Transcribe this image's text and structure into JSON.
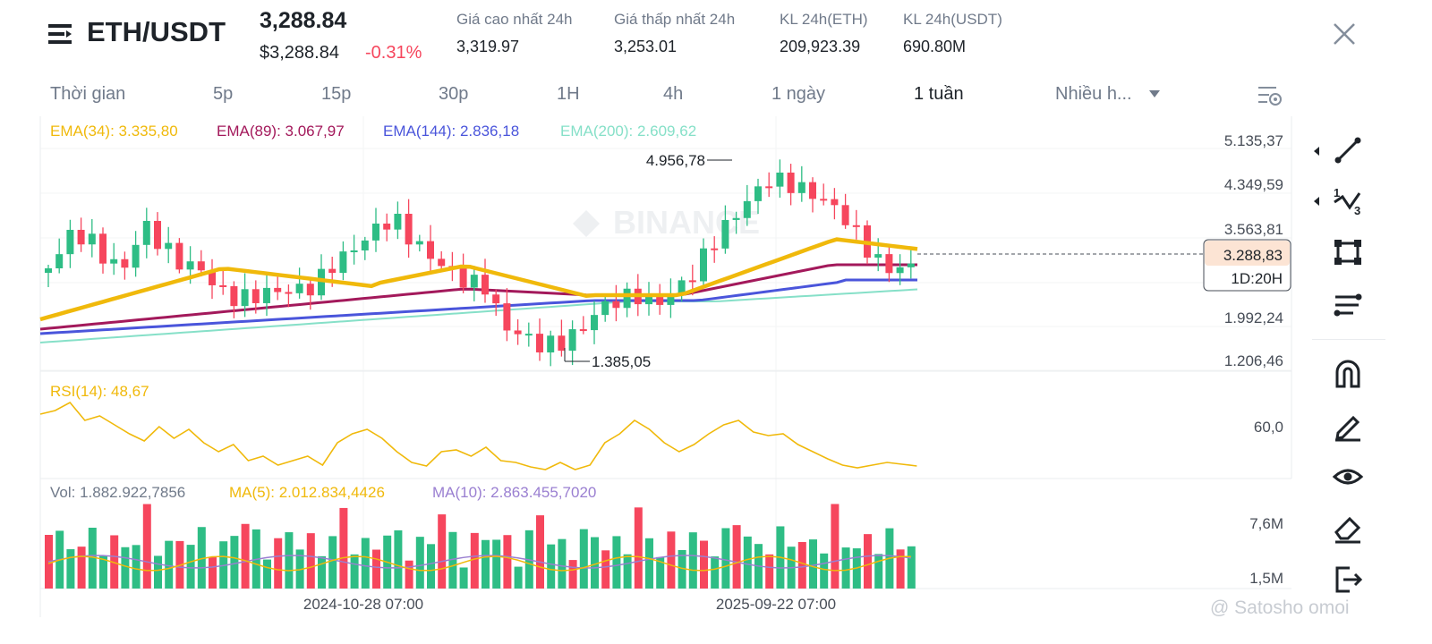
{
  "header": {
    "pair": "ETH/USDT",
    "last_price": "3,288.84",
    "usd_price": "$3,288.84",
    "change": "-0.31%",
    "stats": [
      {
        "label": "Giá cao nhất 24h",
        "value": "3,319.97"
      },
      {
        "label": "Giá thấp nhất 24h",
        "value": "3,253.01"
      },
      {
        "label": "KL 24h(ETH)",
        "value": "209,923.39"
      },
      {
        "label": "KL 24h(USDT)",
        "value": "690.80M"
      }
    ]
  },
  "tabs": [
    "Thời gian",
    "5p",
    "15p",
    "30p",
    "1H",
    "4h",
    "1 ngày",
    "1 tuần",
    "Nhiều h..."
  ],
  "active_tab": "1 tuần",
  "legend": {
    "ema34": "EMA(34): 3.335,80",
    "ema89": "EMA(89): 3.067,97",
    "ema144": "EMA(144): 2.836,18",
    "ema200": "EMA(200): 2.609,62"
  },
  "price_axis": [
    "5.135,37",
    "4.349,59",
    "3.563,81",
    "1.992,24",
    "1.206,46"
  ],
  "current_price_tag": {
    "price": "3.288,83",
    "countdown": "1D:20H"
  },
  "annotations": {
    "high": "4.956,78",
    "low": "1.385,05"
  },
  "rsi": {
    "label": "RSI(14): 48,67",
    "axis": "60,0"
  },
  "volume": {
    "vol": "Vol: 1.882.922,7856",
    "ma5": "MA(5): 2.012.834,4426",
    "ma10": "MA(10): 2.863.455,7020",
    "axis_top": "7,6M",
    "axis_bottom": "1,5M"
  },
  "time_axis": [
    "2024-10-28 07:00",
    "2025-09-22 07:00"
  ],
  "watermark_logo": "BINANCE",
  "watermark_author": "@ Satosho omoi",
  "colors": {
    "up": "#2ebd85",
    "down": "#f6465d",
    "ema34": "#f0b90b",
    "ema89": "#a3195b",
    "ema144": "#4a55db",
    "ema200": "#86e0c8",
    "rsi": "#f0b90b",
    "ma5": "#f0b90b",
    "ma10": "#9a7fd1"
  },
  "tools": [
    "trendline-icon",
    "fibonacci-icon",
    "rectangle-icon",
    "parallel-lines-icon",
    "magnet-icon",
    "pencil-icon",
    "eye-icon",
    "eraser-icon",
    "exit-icon"
  ]
}
